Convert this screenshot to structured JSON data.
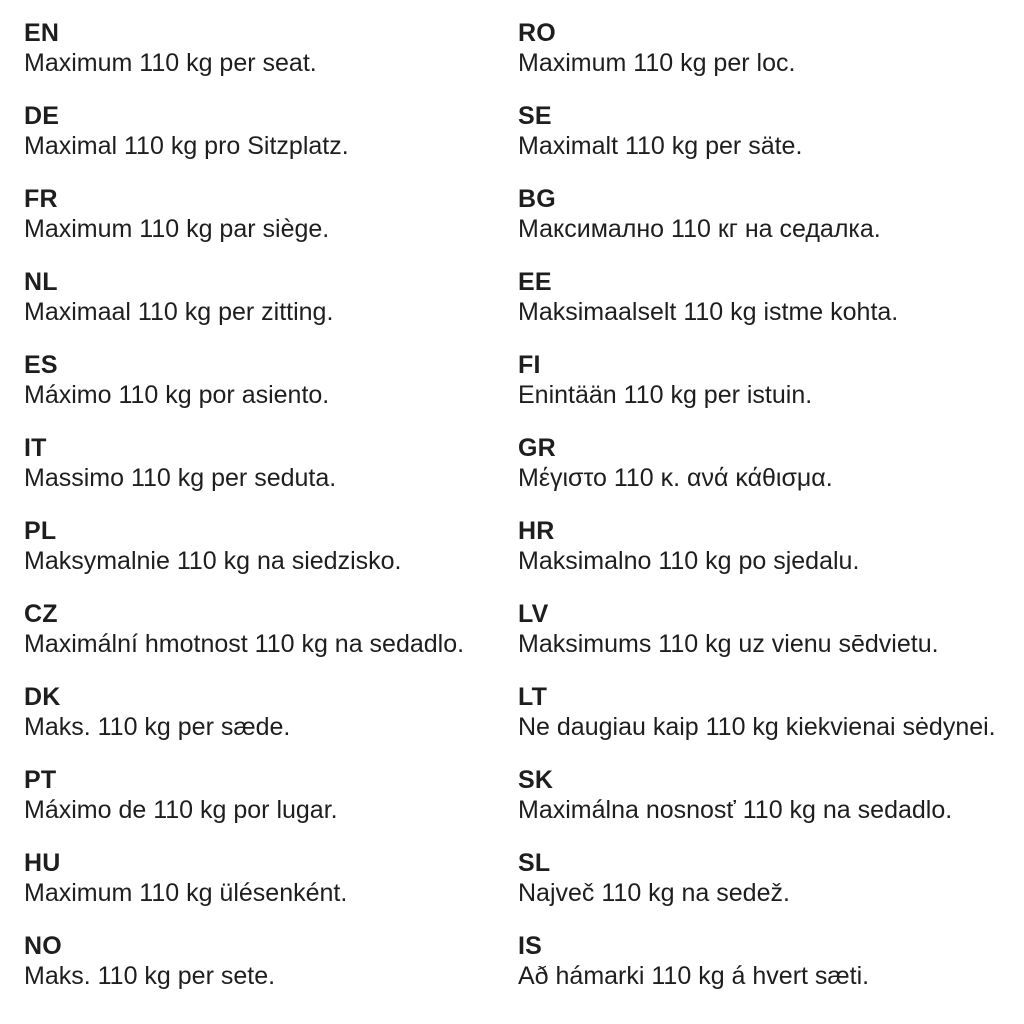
{
  "page": {
    "background": "#ffffff",
    "text_color": "#1e1e1e",
    "description_value": "Maximum 110 kg per seat notice in multiple languages"
  },
  "columns": {
    "left": [
      {
        "code": "EN",
        "text": "Maximum 110 kg per seat."
      },
      {
        "code": "DE",
        "text": "Maximal 110 kg pro Sitzplatz."
      },
      {
        "code": "FR",
        "text": "Maximum 110 kg par siège."
      },
      {
        "code": "NL",
        "text": "Maximaal 110 kg per zitting."
      },
      {
        "code": "ES",
        "text": "Máximo 110 kg por asiento."
      },
      {
        "code": "IT",
        "text": "Massimo 110 kg per seduta."
      },
      {
        "code": "PL",
        "text": "Maksymalnie 110 kg na siedzisko."
      },
      {
        "code": "CZ",
        "text": "Maximální hmotnost 110 kg na sedadlo."
      },
      {
        "code": "DK",
        "text": "Maks. 110 kg per sæde."
      },
      {
        "code": "PT",
        "text": "Máximo de 110 kg por lugar."
      },
      {
        "code": "HU",
        "text": "Maximum 110 kg ülésenként."
      },
      {
        "code": "NO",
        "text": "Maks. 110 kg per sete."
      }
    ],
    "right": [
      {
        "code": "RO",
        "text": "Maximum 110 kg per loc."
      },
      {
        "code": "SE",
        "text": "Maximalt 110 kg per säte."
      },
      {
        "code": "BG",
        "text": "Максимално 110 кг на седалка."
      },
      {
        "code": "EE",
        "text": "Maksimaalselt 110 kg istme kohta."
      },
      {
        "code": "FI",
        "text": "Enintään 110 kg per istuin."
      },
      {
        "code": "GR",
        "text": "Μέγιστο 110 κ. ανά κάθισμα."
      },
      {
        "code": "HR",
        "text": "Maksimalno 110 kg po sjedalu."
      },
      {
        "code": "LV",
        "text": "Maksimums 110 kg uz vienu sēdvietu."
      },
      {
        "code": "LT",
        "text": "Ne daugiau kaip 110 kg kiekvienai sėdynei."
      },
      {
        "code": "SK",
        "text": "Maximálna nosnosť 110 kg na sedadlo."
      },
      {
        "code": "SL",
        "text": "Največ 110 kg na sedež."
      },
      {
        "code": "IS",
        "text": "Að hámarki 110 kg á hvert sæti."
      }
    ]
  }
}
